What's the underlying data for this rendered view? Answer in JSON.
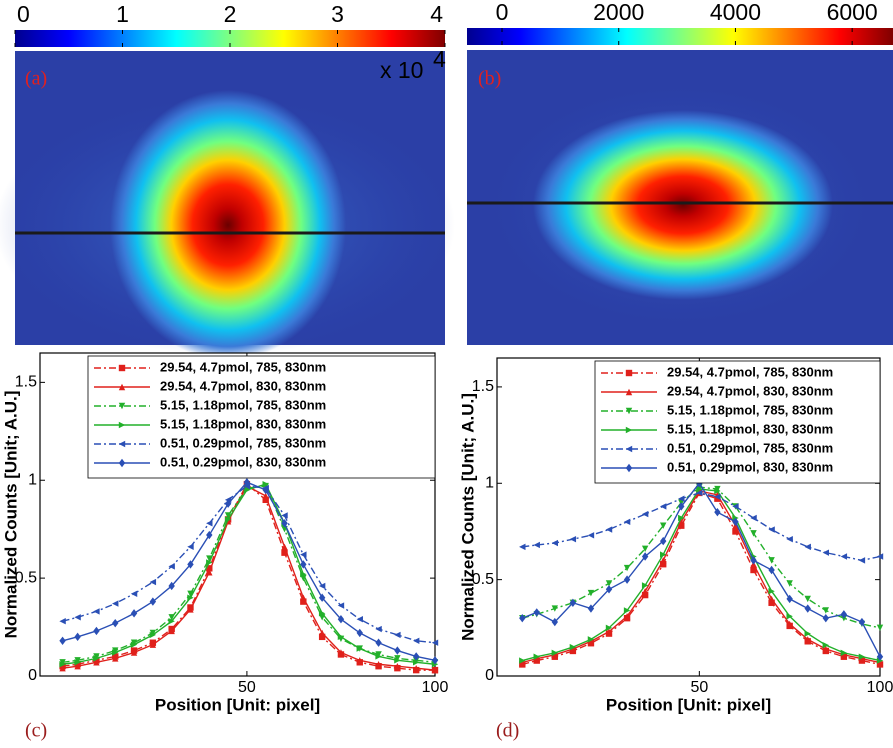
{
  "chart_data": [
    {
      "type": "heatmap",
      "label": "(a)",
      "colormap": "jet",
      "clim": [
        0,
        4
      ],
      "colorbar_ticks": [
        0,
        1,
        2,
        3,
        4
      ],
      "colorbar_multiplier": "x 10",
      "colorbar_exponent": "4"
    },
    {
      "type": "heatmap",
      "label": "(b)",
      "colormap": "jet",
      "clim": [
        -600,
        6700
      ],
      "colorbar_ticks": [
        0,
        2000,
        4000,
        6000
      ]
    },
    {
      "type": "line",
      "label": "(c)",
      "xlabel": "Position [Unit: pixel]",
      "ylabel": "Normalized Counts [Unit; A.U.]",
      "xlim": [
        -5,
        100
      ],
      "ylim": [
        0,
        1.65
      ],
      "xticks": [
        50,
        100
      ],
      "yticks": [
        0,
        0.5,
        1,
        1.5
      ],
      "legend": "upper right",
      "x": [
        1,
        5,
        10,
        15,
        20,
        25,
        30,
        35,
        40,
        45,
        50,
        55,
        60,
        65,
        70,
        75,
        80,
        85,
        90,
        95,
        100
      ],
      "series": [
        {
          "name": "29.54, 4.7pmol, 785, 830nm",
          "color": "#e0201b",
          "line_style": "dash-dot",
          "marker": "square",
          "values": [
            0.05,
            0.06,
            0.08,
            0.1,
            0.13,
            0.17,
            0.24,
            0.35,
            0.55,
            0.8,
            0.98,
            0.9,
            0.63,
            0.38,
            0.2,
            0.11,
            0.07,
            0.05,
            0.04,
            0.03,
            0.03
          ]
        },
        {
          "name": "29.54, 4.7pmol, 830, 830nm",
          "color": "#e0201b",
          "line_style": "solid",
          "marker": "triangle-up",
          "values": [
            0.04,
            0.05,
            0.07,
            0.09,
            0.12,
            0.16,
            0.23,
            0.34,
            0.53,
            0.79,
            0.97,
            0.92,
            0.66,
            0.4,
            0.22,
            0.12,
            0.08,
            0.06,
            0.05,
            0.04,
            0.03
          ]
        },
        {
          "name": "5.15, 1.18pmol, 785, 830nm",
          "color": "#22b02a",
          "line_style": "dash-dot",
          "marker": "triangle-down",
          "values": [
            0.07,
            0.08,
            0.1,
            0.13,
            0.17,
            0.22,
            0.3,
            0.42,
            0.6,
            0.82,
            0.96,
            0.97,
            0.75,
            0.5,
            0.3,
            0.19,
            0.14,
            0.11,
            0.09,
            0.08,
            0.07
          ]
        },
        {
          "name": "5.15, 1.18pmol, 830, 830nm",
          "color": "#22b02a",
          "line_style": "solid",
          "marker": "triangle-right",
          "values": [
            0.06,
            0.07,
            0.09,
            0.12,
            0.16,
            0.21,
            0.28,
            0.4,
            0.58,
            0.8,
            0.95,
            0.98,
            0.78,
            0.52,
            0.32,
            0.2,
            0.14,
            0.1,
            0.08,
            0.07,
            0.06
          ]
        },
        {
          "name": "0.51, 0.29pmol, 785, 830nm",
          "color": "#2a4fb5",
          "line_style": "dash-dot",
          "marker": "triangle-left",
          "values": [
            0.28,
            0.3,
            0.33,
            0.37,
            0.42,
            0.48,
            0.56,
            0.66,
            0.78,
            0.9,
            0.97,
            0.96,
            0.82,
            0.62,
            0.46,
            0.36,
            0.29,
            0.24,
            0.21,
            0.18,
            0.17
          ]
        },
        {
          "name": "0.51, 0.29pmol, 830, 830nm",
          "color": "#2a4fb5",
          "line_style": "solid",
          "marker": "diamond",
          "values": [
            0.18,
            0.2,
            0.23,
            0.27,
            0.32,
            0.38,
            0.46,
            0.57,
            0.72,
            0.88,
            0.99,
            0.95,
            0.78,
            0.57,
            0.4,
            0.29,
            0.22,
            0.17,
            0.13,
            0.1,
            0.08
          ]
        }
      ]
    },
    {
      "type": "line",
      "label": "(d)",
      "xlabel": "Position [Unit: pixel]",
      "ylabel": "Normalized Counts [Unit; A.U.]",
      "xlim": [
        -6,
        100
      ],
      "ylim": [
        0,
        1.65
      ],
      "xticks": [
        50,
        100
      ],
      "yticks": [
        0,
        0.5,
        1,
        1.5
      ],
      "legend": "upper right",
      "x": [
        1,
        5,
        10,
        15,
        20,
        25,
        30,
        35,
        40,
        45,
        50,
        55,
        60,
        65,
        70,
        75,
        80,
        85,
        90,
        95,
        100
      ],
      "series": [
        {
          "name": "29.54, 4.7pmol, 785, 830nm",
          "color": "#e0201b",
          "line_style": "dash-dot",
          "marker": "square",
          "values": [
            0.06,
            0.08,
            0.1,
            0.13,
            0.17,
            0.22,
            0.3,
            0.42,
            0.58,
            0.78,
            0.95,
            0.92,
            0.75,
            0.55,
            0.38,
            0.26,
            0.18,
            0.13,
            0.1,
            0.08,
            0.06
          ]
        },
        {
          "name": "29.54, 4.7pmol, 830, 830nm",
          "color": "#e0201b",
          "line_style": "solid",
          "marker": "triangle-up",
          "values": [
            0.07,
            0.09,
            0.11,
            0.14,
            0.18,
            0.23,
            0.31,
            0.44,
            0.6,
            0.8,
            0.96,
            0.94,
            0.78,
            0.58,
            0.4,
            0.27,
            0.19,
            0.14,
            0.11,
            0.09,
            0.07
          ]
        },
        {
          "name": "5.15, 1.18pmol, 785, 830nm",
          "color": "#22b02a",
          "line_style": "dash-dot",
          "marker": "triangle-down",
          "values": [
            0.3,
            0.32,
            0.35,
            0.38,
            0.43,
            0.48,
            0.56,
            0.66,
            0.78,
            0.9,
            0.98,
            0.97,
            0.88,
            0.74,
            0.6,
            0.48,
            0.4,
            0.34,
            0.3,
            0.27,
            0.25
          ]
        },
        {
          "name": "5.15, 1.18pmol, 830, 830nm",
          "color": "#22b02a",
          "line_style": "solid",
          "marker": "triangle-right",
          "values": [
            0.08,
            0.1,
            0.12,
            0.15,
            0.19,
            0.25,
            0.34,
            0.47,
            0.63,
            0.82,
            0.97,
            0.96,
            0.82,
            0.62,
            0.44,
            0.31,
            0.22,
            0.16,
            0.12,
            0.1,
            0.08
          ]
        },
        {
          "name": "0.51, 0.29pmol, 785, 830nm",
          "color": "#2a4fb5",
          "line_style": "dash-dot",
          "marker": "triangle-left",
          "values": [
            0.67,
            0.68,
            0.69,
            0.71,
            0.73,
            0.76,
            0.8,
            0.84,
            0.88,
            0.92,
            0.95,
            0.93,
            0.88,
            0.82,
            0.76,
            0.71,
            0.67,
            0.64,
            0.62,
            0.6,
            0.62
          ]
        },
        {
          "name": "0.51, 0.29pmol, 830, 830nm",
          "color": "#2a4fb5",
          "line_style": "solid",
          "marker": "diamond",
          "values": [
            0.3,
            0.33,
            0.28,
            0.38,
            0.35,
            0.45,
            0.5,
            0.62,
            0.7,
            0.88,
            1.0,
            0.85,
            0.8,
            0.6,
            0.55,
            0.4,
            0.35,
            0.3,
            0.32,
            0.28,
            0.1
          ]
        }
      ]
    }
  ]
}
